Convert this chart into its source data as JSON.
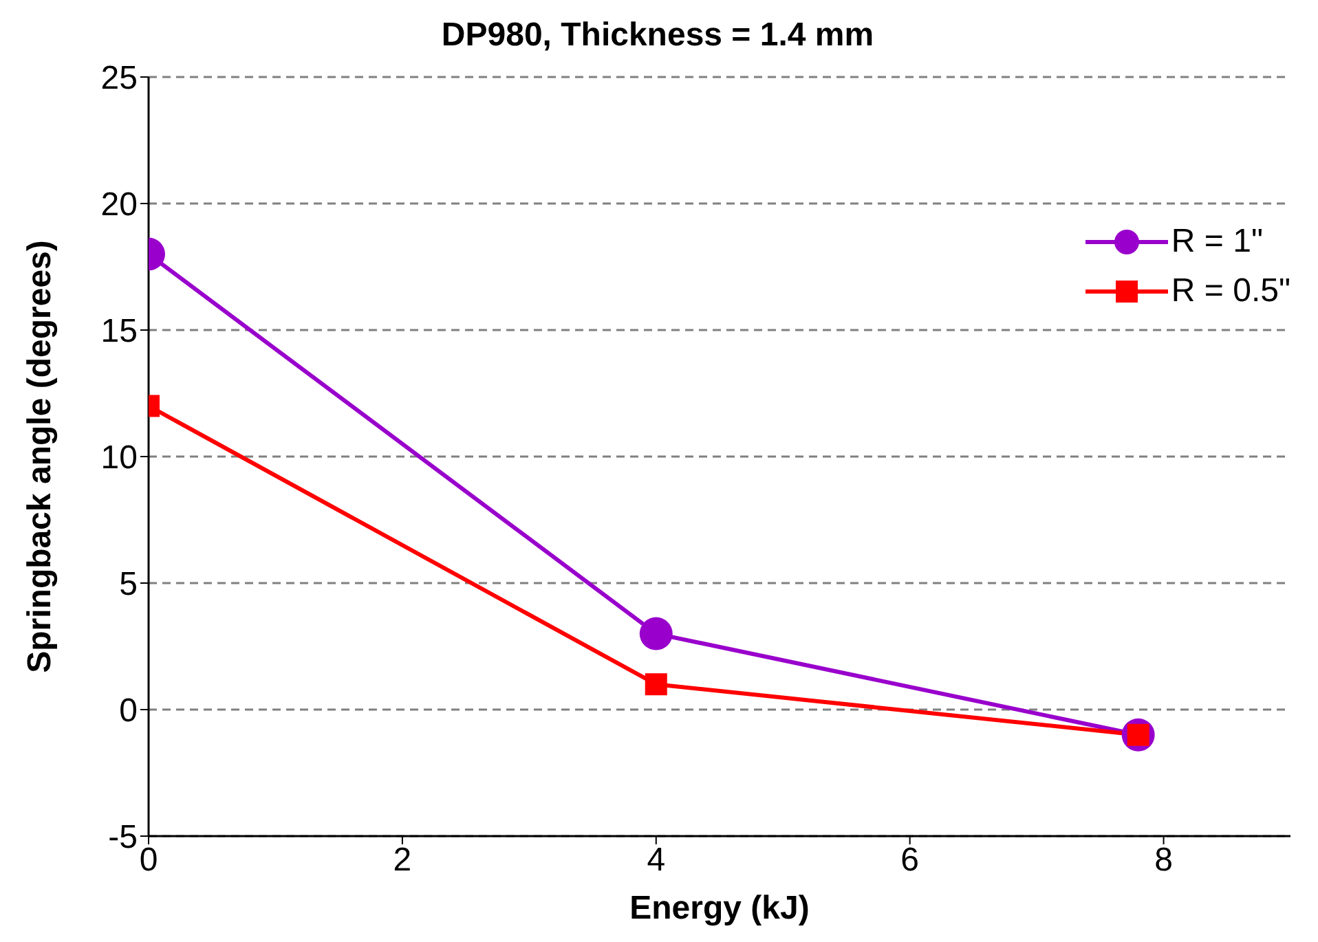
{
  "chart_data": {
    "type": "line",
    "title": "DP980, Thickness = 1.4 mm",
    "xlabel": "Energy (kJ)",
    "ylabel": "Springback angle (degrees)",
    "x": [
      0,
      4,
      7.8
    ],
    "series": [
      {
        "name": "R = 1\"",
        "color": "#9900cc",
        "marker": "circle",
        "values": [
          18,
          3,
          -1
        ]
      },
      {
        "name": "R = 0.5\"",
        "color": "#ff0000",
        "marker": "square",
        "values": [
          12,
          1,
          -1
        ]
      }
    ],
    "xlim": [
      0,
      9
    ],
    "xticks": [
      0,
      2,
      4,
      6,
      8
    ],
    "ylim": [
      -5,
      25
    ],
    "yticks": [
      -5,
      0,
      5,
      10,
      15,
      20,
      25
    ],
    "grid": "y",
    "legend": "top right",
    "line_style": "solid"
  }
}
